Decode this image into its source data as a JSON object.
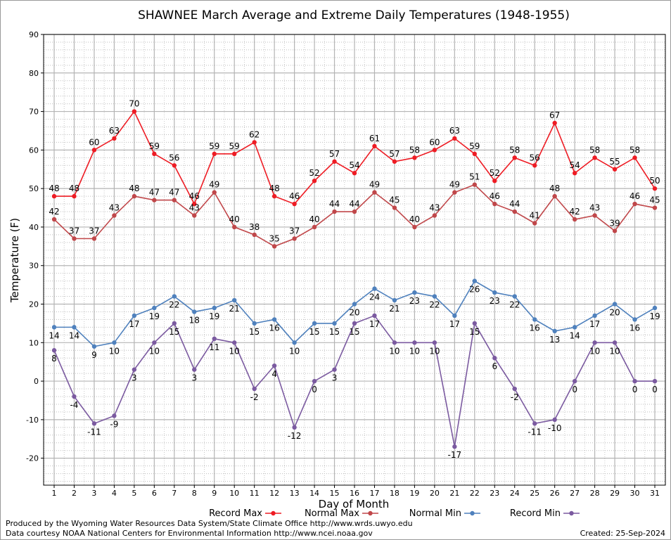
{
  "chart_data": {
    "type": "line",
    "title": "SHAWNEE March Average and Extreme Daily Temperatures (1948-1955)",
    "xlabel": "Day of Month",
    "ylabel": "Temperature (F)",
    "x": [
      1,
      2,
      3,
      4,
      5,
      6,
      7,
      8,
      9,
      10,
      11,
      12,
      13,
      14,
      15,
      16,
      17,
      18,
      19,
      20,
      21,
      22,
      23,
      24,
      25,
      26,
      27,
      28,
      29,
      30,
      31
    ],
    "ylim": [
      -27,
      90
    ],
    "yticks": [
      -20,
      -10,
      0,
      10,
      20,
      30,
      40,
      50,
      60,
      70,
      80,
      90
    ],
    "grid": true,
    "legend_position": "bottom",
    "series": [
      {
        "name": "Record Max",
        "color": "#ee1c24",
        "label_pos": "above",
        "values": [
          48,
          48,
          60,
          63,
          70,
          59,
          56,
          46,
          59,
          59,
          62,
          48,
          46,
          52,
          57,
          54,
          61,
          57,
          58,
          60,
          63,
          59,
          52,
          58,
          56,
          67,
          54,
          58,
          55,
          58,
          50
        ]
      },
      {
        "name": "Normal Max",
        "color": "#c0474a",
        "label_pos": "above",
        "values": [
          42,
          37,
          37,
          43,
          48,
          47,
          47,
          43,
          49,
          40,
          38,
          35,
          37,
          40,
          44,
          44,
          49,
          45,
          40,
          43,
          49,
          51,
          46,
          44,
          41,
          48,
          42,
          43,
          39,
          46,
          45
        ]
      },
      {
        "name": "Normal Min",
        "color": "#4f81bd",
        "label_pos": "below",
        "values": [
          14,
          14,
          9,
          10,
          17,
          19,
          22,
          18,
          19,
          21,
          15,
          16,
          10,
          15,
          15,
          20,
          24,
          21,
          23,
          22,
          17,
          26,
          23,
          22,
          16,
          13,
          14,
          17,
          20,
          16,
          19
        ]
      },
      {
        "name": "Record Min",
        "color": "#7b5aa0",
        "label_pos": "below",
        "values": [
          8,
          -4,
          -11,
          -9,
          3,
          10,
          15,
          3,
          11,
          10,
          -2,
          4,
          -12,
          0,
          3,
          15,
          17,
          10,
          10,
          10,
          -17,
          15,
          6,
          -2,
          -11,
          -10,
          0,
          10,
          10,
          0,
          0
        ]
      }
    ]
  },
  "footer": {
    "credit_line1": "Produced by the Wyoming Water Resources Data System/State Climate Office http://www.wrds.uwyo.edu",
    "credit_line2": "Data courtesy NOAA National Centers for Environmental Information http://www.ncei.noaa.gov",
    "created": "Created:  25-Sep-2024"
  }
}
